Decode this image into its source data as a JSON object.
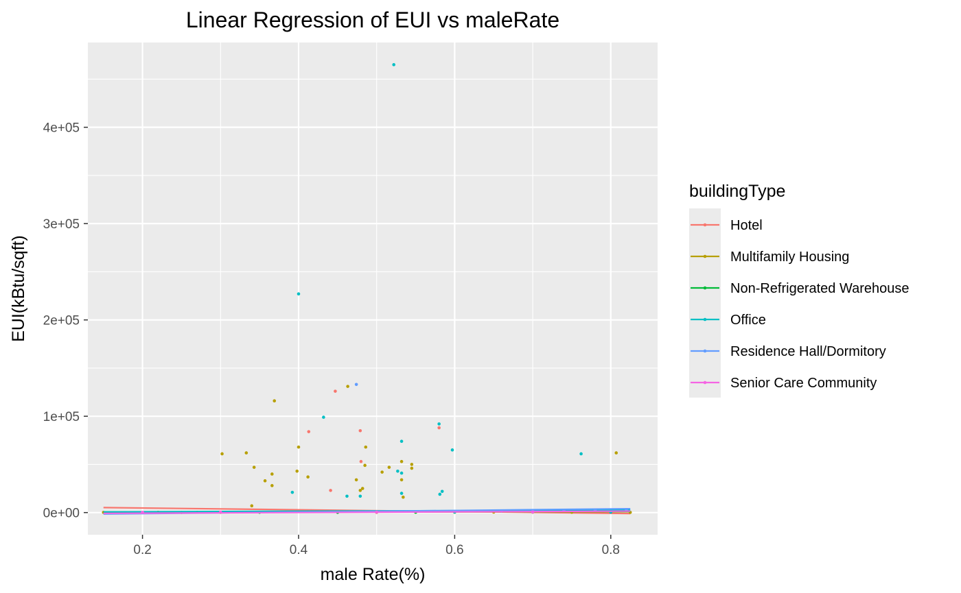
{
  "chart_data": {
    "type": "scatter",
    "title": "Linear Regression of EUI vs maleRate",
    "xlabel": "male Rate(%)",
    "ylabel": "EUI(kBtu/sqft)",
    "xlim": [
      0.13,
      0.86
    ],
    "ylim": [
      -23000,
      488000
    ],
    "x_ticks": [
      0.2,
      0.4,
      0.6,
      0.8
    ],
    "x_tick_labels": [
      "0.2",
      "0.4",
      "0.6",
      "0.8"
    ],
    "y_ticks": [
      0,
      100000,
      200000,
      300000,
      400000
    ],
    "y_tick_labels": [
      "0e+00",
      "1e+05",
      "2e+05",
      "3e+05",
      "4e+05"
    ],
    "grid": true,
    "legend": {
      "title": "buildingType",
      "position": "right"
    },
    "series": [
      {
        "name": "Hotel",
        "color": "#F8766D",
        "points": [
          [
            0.447,
            126000
          ],
          [
            0.413,
            84000
          ],
          [
            0.479,
            85000
          ],
          [
            0.58,
            88000
          ],
          [
            0.48,
            53000
          ],
          [
            0.441,
            23000
          ]
        ],
        "fit": [
          [
            0.15,
            5200
          ],
          [
            0.825,
            -1000
          ]
        ]
      },
      {
        "name": "Multifamily Housing",
        "color": "#B79F00",
        "points": [
          [
            0.369,
            116000
          ],
          [
            0.463,
            131000
          ],
          [
            0.302,
            61000
          ],
          [
            0.333,
            62000
          ],
          [
            0.343,
            47000
          ],
          [
            0.366,
            40000
          ],
          [
            0.357,
            33000
          ],
          [
            0.366,
            28000
          ],
          [
            0.34,
            7000
          ],
          [
            0.4,
            68000
          ],
          [
            0.398,
            43000
          ],
          [
            0.412,
            37000
          ],
          [
            0.486,
            68000
          ],
          [
            0.485,
            49000
          ],
          [
            0.532,
            53000
          ],
          [
            0.545,
            50000
          ],
          [
            0.545,
            46000
          ],
          [
            0.516,
            47000
          ],
          [
            0.507,
            42000
          ],
          [
            0.474,
            34000
          ],
          [
            0.532,
            34000
          ],
          [
            0.482,
            25000
          ],
          [
            0.479,
            23000
          ],
          [
            0.534,
            16000
          ],
          [
            0.807,
            62000
          ],
          [
            0.15,
            200
          ],
          [
            0.825,
            200
          ],
          [
            0.22,
            300
          ],
          [
            0.25,
            100
          ],
          [
            0.27,
            300
          ],
          [
            0.3,
            200
          ],
          [
            0.45,
            300
          ],
          [
            0.5,
            200
          ],
          [
            0.55,
            400
          ],
          [
            0.6,
            300
          ],
          [
            0.65,
            500
          ],
          [
            0.7,
            400
          ],
          [
            0.75,
            300
          ]
        ],
        "fit": [
          [
            0.15,
            200
          ],
          [
            0.825,
            900
          ]
        ]
      },
      {
        "name": "Non-Refrigerated Warehouse",
        "color": "#00BA38",
        "points": [
          [
            0.35,
            300
          ],
          [
            0.45,
            200
          ],
          [
            0.55,
            400
          ]
        ],
        "fit": [
          [
            0.15,
            600
          ],
          [
            0.825,
            1200
          ]
        ]
      },
      {
        "name": "Office",
        "color": "#00BFC4",
        "points": [
          [
            0.522,
            465000
          ],
          [
            0.4,
            227000
          ],
          [
            0.432,
            99000
          ],
          [
            0.58,
            92000
          ],
          [
            0.532,
            74000
          ],
          [
            0.597,
            65000
          ],
          [
            0.762,
            61000
          ],
          [
            0.527,
            43000
          ],
          [
            0.532,
            41000
          ],
          [
            0.392,
            21000
          ],
          [
            0.462,
            17000
          ],
          [
            0.479,
            17000
          ],
          [
            0.532,
            20000
          ],
          [
            0.584,
            22000
          ],
          [
            0.581,
            19000
          ],
          [
            0.6,
            500
          ],
          [
            0.7,
            600
          ],
          [
            0.8,
            400
          ]
        ],
        "fit": [
          [
            0.15,
            700
          ],
          [
            0.825,
            2600
          ]
        ]
      },
      {
        "name": "Residence Hall/Dormitory",
        "color": "#619CFF",
        "points": [
          [
            0.474,
            133000
          ],
          [
            0.66,
            1500
          ],
          [
            0.7,
            1800
          ],
          [
            0.74,
            2200
          ],
          [
            0.78,
            2500
          ],
          [
            0.82,
            3000
          ]
        ],
        "fit": [
          [
            0.15,
            -1500
          ],
          [
            0.825,
            4000
          ]
        ]
      },
      {
        "name": "Senior Care Community",
        "color": "#F564E3",
        "points": [
          [
            0.2,
            300
          ],
          [
            0.3,
            500
          ],
          [
            0.5,
            400
          ],
          [
            0.7,
            600
          ]
        ],
        "fit": [
          [
            0.15,
            -800
          ],
          [
            0.825,
            1500
          ]
        ]
      }
    ]
  }
}
